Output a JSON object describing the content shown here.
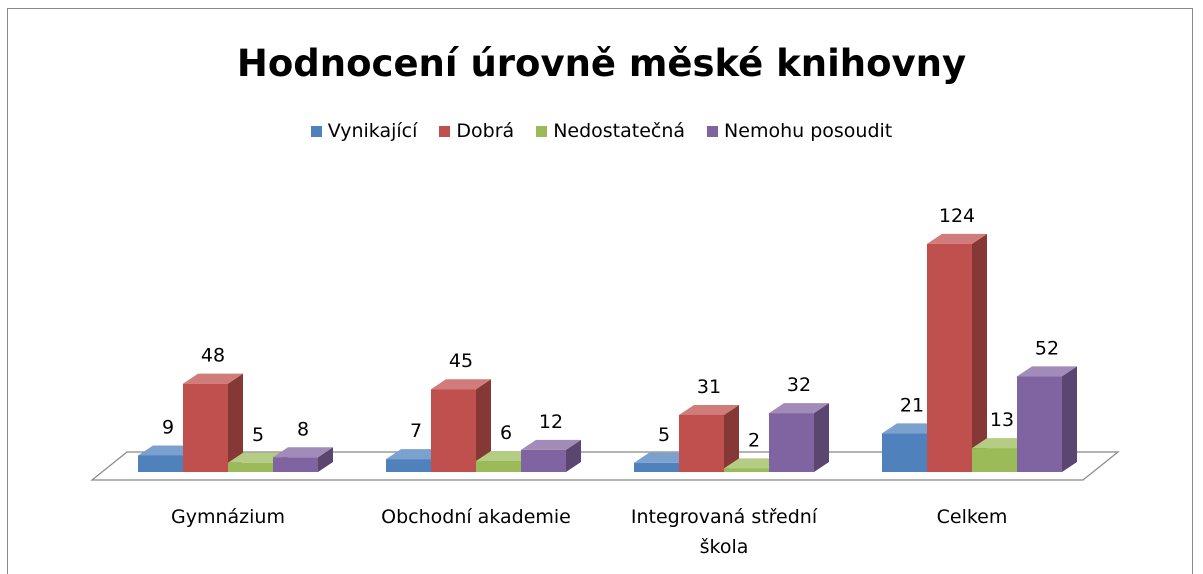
{
  "chart_data": {
    "type": "bar3d",
    "title": "Hodnocení úrovně měské knihovny",
    "categories": [
      "Gymnázium",
      "Obchodní akademie",
      "Integrovaná střední škola",
      "Celkem"
    ],
    "series": [
      {
        "name": "Vynikající",
        "color": "#4f81bd",
        "values": [
          9,
          7,
          5,
          21
        ]
      },
      {
        "name": "Dobrá",
        "color": "#c0504d",
        "values": [
          48,
          45,
          31,
          124
        ]
      },
      {
        "name": "Nedostatečná",
        "color": "#9bbb59",
        "values": [
          5,
          6,
          2,
          13
        ]
      },
      {
        "name": "Nemohu posoudit",
        "color": "#8064a2",
        "values": [
          8,
          12,
          32,
          52
        ]
      }
    ],
    "legend": "top"
  }
}
